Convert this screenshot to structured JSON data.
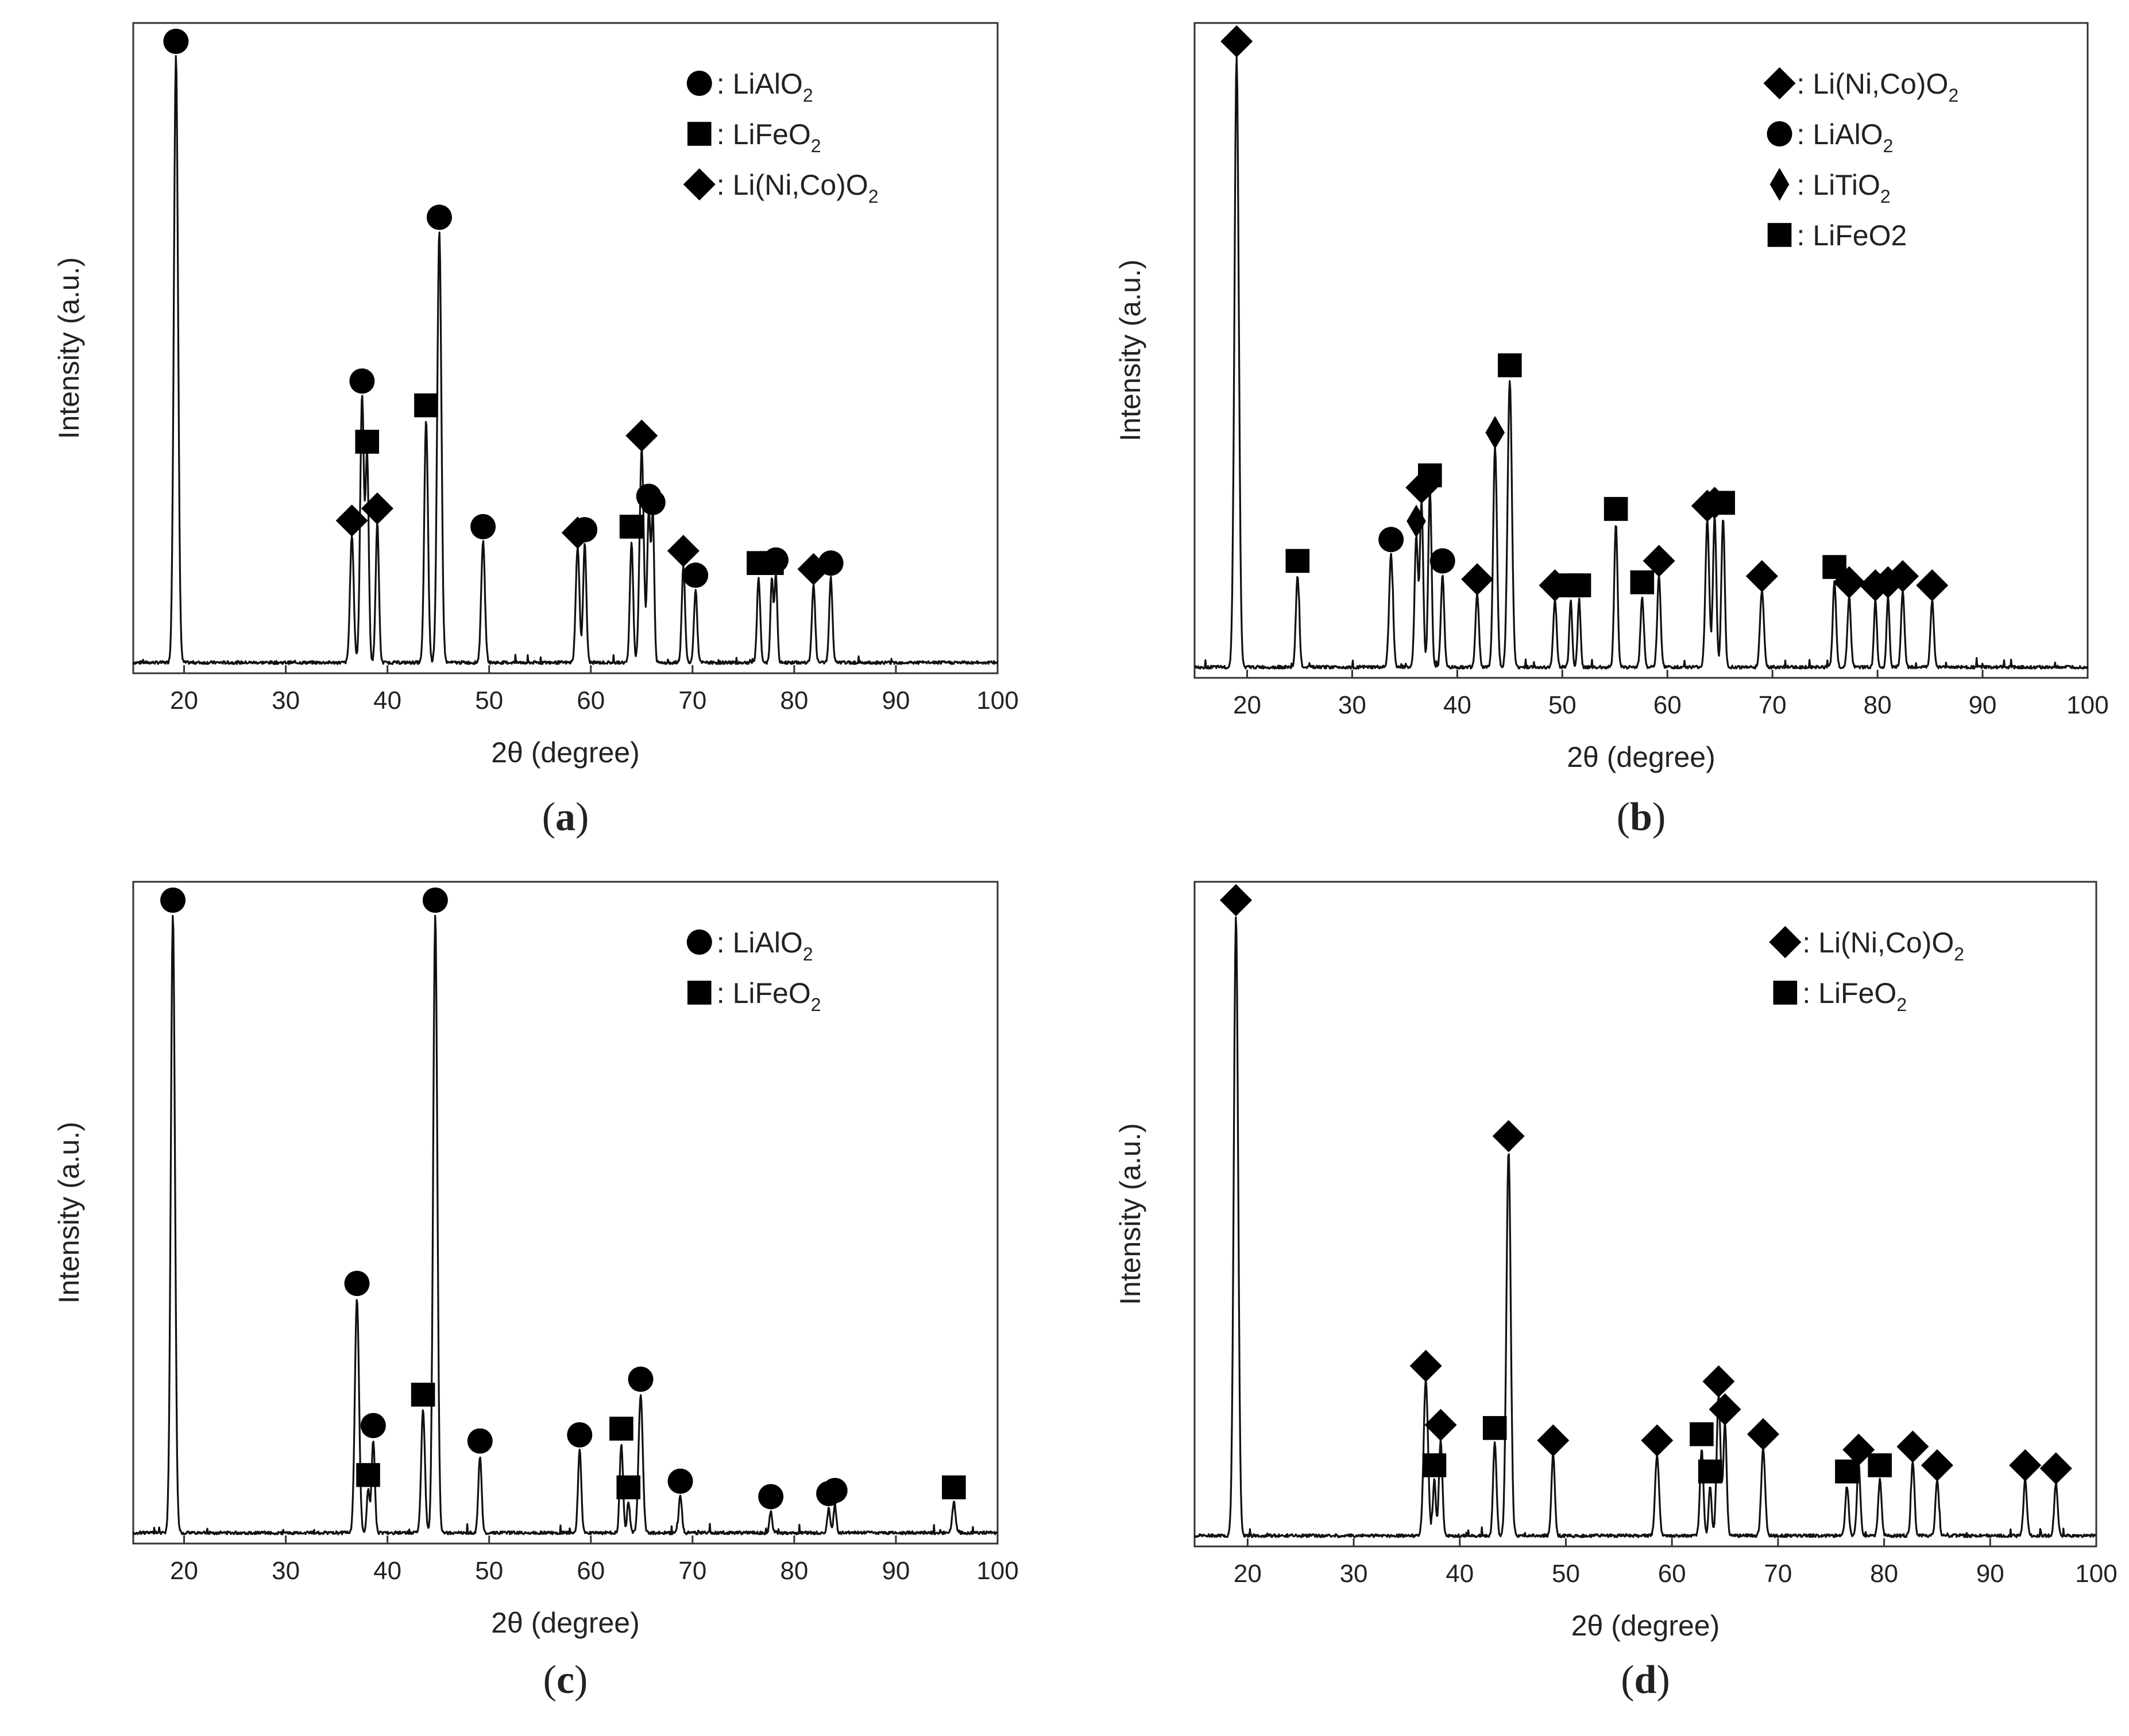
{
  "figure": {
    "background": "#ffffff",
    "ink": "#000000"
  },
  "chart_data": [
    {
      "panel": "a",
      "type": "line",
      "title": "",
      "caption_letter": "a",
      "xlabel": "2θ (degree)",
      "ylabel": "Intensity (a.u.)",
      "xlim": [
        15,
        100
      ],
      "ylim": [
        0,
        100
      ],
      "xticks": [
        20,
        30,
        40,
        50,
        60,
        70,
        80,
        90,
        100
      ],
      "legend_position": "top-right",
      "legend": [
        {
          "marker": "circle",
          "prefix": ": ",
          "label": "LiAlO",
          "sub": "2"
        },
        {
          "marker": "square",
          "prefix": ": ",
          "label": "LiFeO",
          "sub": "2"
        },
        {
          "marker": "diamond",
          "prefix": ": ",
          "label": "Li(Ni,Co)O",
          "sub": "2"
        }
      ],
      "peaks": [
        {
          "x": 19.2,
          "y": 100,
          "marker": "circle",
          "width": 0.45
        },
        {
          "x": 36.5,
          "y": 21,
          "marker": "diamond",
          "width": 0.4
        },
        {
          "x": 37.5,
          "y": 44,
          "marker": "circle",
          "width": 0.4
        },
        {
          "x": 38.0,
          "y": 34,
          "marker": "square",
          "width": 0.35
        },
        {
          "x": 39.0,
          "y": 23,
          "marker": "diamond",
          "width": 0.35
        },
        {
          "x": 43.8,
          "y": 40,
          "marker": "square",
          "width": 0.4
        },
        {
          "x": 45.1,
          "y": 71,
          "marker": "circle",
          "width": 0.45
        },
        {
          "x": 49.4,
          "y": 20,
          "marker": "circle",
          "width": 0.4
        },
        {
          "x": 58.7,
          "y": 19,
          "marker": "diamond",
          "width": 0.4
        },
        {
          "x": 59.4,
          "y": 19.5,
          "marker": "circle",
          "width": 0.35
        },
        {
          "x": 64.0,
          "y": 20,
          "marker": "square",
          "width": 0.35
        },
        {
          "x": 65.0,
          "y": 35,
          "marker": "diamond",
          "width": 0.45
        },
        {
          "x": 65.7,
          "y": 25,
          "marker": "circle",
          "width": 0.35
        },
        {
          "x": 66.1,
          "y": 24,
          "marker": "circle",
          "width": 0.3
        },
        {
          "x": 69.1,
          "y": 16,
          "marker": "diamond",
          "width": 0.35
        },
        {
          "x": 70.3,
          "y": 12,
          "marker": "circle",
          "width": 0.35
        },
        {
          "x": 76.5,
          "y": 14,
          "marker": "square",
          "width": 0.35
        },
        {
          "x": 77.8,
          "y": 14,
          "marker": "square",
          "width": 0.3
        },
        {
          "x": 78.2,
          "y": 14.5,
          "marker": "circle",
          "width": 0.3
        },
        {
          "x": 81.9,
          "y": 13,
          "marker": "diamond",
          "width": 0.35
        },
        {
          "x": 83.6,
          "y": 14,
          "marker": "circle",
          "width": 0.35
        }
      ]
    },
    {
      "panel": "b",
      "type": "line",
      "title": "",
      "caption_letter": "b",
      "xlabel": "2θ (degree)",
      "ylabel": "Intensity (a.u.)",
      "xlim": [
        15,
        100
      ],
      "ylim": [
        0,
        100
      ],
      "xticks": [
        20,
        30,
        40,
        50,
        60,
        70,
        80,
        90,
        100
      ],
      "legend_position": "top-right",
      "legend": [
        {
          "marker": "diamond",
          "prefix": ": ",
          "label": "Li(Ni,Co)O",
          "sub": "2"
        },
        {
          "marker": "circle",
          "prefix": ": ",
          "label": "LiAlO",
          "sub": "2"
        },
        {
          "marker": "thin-diamond",
          "prefix": ": ",
          "label": "LiTiO",
          "sub": "2"
        },
        {
          "marker": "square",
          "prefix": ": ",
          "label": "LiFeO2",
          "sub": ""
        }
      ],
      "peaks": [
        {
          "x": 19.0,
          "y": 100,
          "marker": "diamond",
          "width": 0.45
        },
        {
          "x": 24.8,
          "y": 15,
          "marker": "square",
          "width": 0.35
        },
        {
          "x": 33.7,
          "y": 18.5,
          "marker": "circle",
          "width": 0.4
        },
        {
          "x": 36.1,
          "y": 21.5,
          "marker": "thin-diamond",
          "width": 0.35
        },
        {
          "x": 36.6,
          "y": 27,
          "marker": "diamond",
          "width": 0.35
        },
        {
          "x": 37.4,
          "y": 29,
          "marker": "square",
          "width": 0.35
        },
        {
          "x": 38.6,
          "y": 15,
          "marker": "circle",
          "width": 0.35
        },
        {
          "x": 41.9,
          "y": 12,
          "marker": "diamond",
          "width": 0.35
        },
        {
          "x": 43.6,
          "y": 36,
          "marker": "thin-diamond",
          "width": 0.4
        },
        {
          "x": 45.0,
          "y": 47,
          "marker": "square",
          "width": 0.45
        },
        {
          "x": 49.3,
          "y": 11,
          "marker": "diamond",
          "width": 0.35
        },
        {
          "x": 50.8,
          "y": 11,
          "marker": "square",
          "width": 0.3
        },
        {
          "x": 51.6,
          "y": 11,
          "marker": "square",
          "width": 0.3
        },
        {
          "x": 55.1,
          "y": 23.5,
          "marker": "square",
          "width": 0.35
        },
        {
          "x": 57.6,
          "y": 11.5,
          "marker": "square",
          "width": 0.35
        },
        {
          "x": 59.2,
          "y": 15,
          "marker": "diamond",
          "width": 0.35
        },
        {
          "x": 63.8,
          "y": 24,
          "marker": "diamond",
          "width": 0.4
        },
        {
          "x": 64.5,
          "y": 24.5,
          "marker": "diamond",
          "width": 0.35
        },
        {
          "x": 65.3,
          "y": 24.5,
          "marker": "square",
          "width": 0.35
        },
        {
          "x": 69.0,
          "y": 12.5,
          "marker": "diamond",
          "width": 0.4
        },
        {
          "x": 75.9,
          "y": 14,
          "marker": "square",
          "width": 0.35
        },
        {
          "x": 77.3,
          "y": 11.5,
          "marker": "diamond",
          "width": 0.35
        },
        {
          "x": 79.8,
          "y": 11,
          "marker": "diamond",
          "width": 0.3
        },
        {
          "x": 81.0,
          "y": 11.5,
          "marker": "diamond",
          "width": 0.3
        },
        {
          "x": 82.4,
          "y": 12.5,
          "marker": "diamond",
          "width": 0.35
        },
        {
          "x": 85.2,
          "y": 11,
          "marker": "diamond",
          "width": 0.35
        }
      ]
    },
    {
      "panel": "c",
      "type": "line",
      "title": "",
      "caption_letter": "c",
      "xlabel": "2θ (degree)",
      "ylabel": "Intensity (a.u.)",
      "xlim": [
        15,
        100
      ],
      "ylim": [
        0,
        100
      ],
      "xticks": [
        20,
        30,
        40,
        50,
        60,
        70,
        80,
        90,
        100
      ],
      "legend_position": "top-right",
      "legend": [
        {
          "marker": "circle",
          "prefix": ": ",
          "label": "LiAlO",
          "sub": "2"
        },
        {
          "marker": "square",
          "prefix": ": ",
          "label": "LiFeO",
          "sub": "2"
        }
      ],
      "peaks": [
        {
          "x": 18.9,
          "y": 100,
          "marker": "circle",
          "width": 0.45
        },
        {
          "x": 37.0,
          "y": 38,
          "marker": "circle",
          "width": 0.45
        },
        {
          "x": 38.1,
          "y": 7,
          "marker": "square",
          "width": 0.3
        },
        {
          "x": 38.6,
          "y": 15,
          "marker": "circle",
          "width": 0.35
        },
        {
          "x": 43.5,
          "y": 20,
          "marker": "square",
          "width": 0.4
        },
        {
          "x": 44.7,
          "y": 100,
          "marker": "circle",
          "width": 0.45
        },
        {
          "x": 49.1,
          "y": 12.5,
          "marker": "circle",
          "width": 0.35
        },
        {
          "x": 58.9,
          "y": 13.5,
          "marker": "circle",
          "width": 0.35
        },
        {
          "x": 63.0,
          "y": 14.5,
          "marker": "square",
          "width": 0.35
        },
        {
          "x": 63.7,
          "y": 5,
          "marker": "square",
          "width": 0.3
        },
        {
          "x": 64.9,
          "y": 22.5,
          "marker": "circle",
          "width": 0.45
        },
        {
          "x": 68.8,
          "y": 6,
          "marker": "circle",
          "width": 0.35
        },
        {
          "x": 77.7,
          "y": 3.5,
          "marker": "circle",
          "width": 0.3
        },
        {
          "x": 83.4,
          "y": 4,
          "marker": "circle",
          "width": 0.3
        },
        {
          "x": 84.0,
          "y": 4.5,
          "marker": "circle",
          "width": 0.3
        },
        {
          "x": 95.7,
          "y": 5,
          "marker": "square",
          "width": 0.35
        }
      ]
    },
    {
      "panel": "d",
      "type": "line",
      "title": "",
      "caption_letter": "d",
      "xlabel": "2θ (degree)",
      "ylabel": "Intensity (a.u.)",
      "xlim": [
        15,
        100
      ],
      "ylim": [
        0,
        100
      ],
      "xticks": [
        20,
        30,
        40,
        50,
        60,
        70,
        80,
        90,
        100
      ],
      "legend_position": "top-right",
      "legend": [
        {
          "marker": "diamond",
          "prefix": ": ",
          "label": "Li(Ni,Co)O",
          "sub": "2"
        },
        {
          "marker": "square",
          "prefix": ": ",
          "label": "LiFeO",
          "sub": "2"
        }
      ],
      "peaks": [
        {
          "x": 18.9,
          "y": 100,
          "marker": "diamond",
          "width": 0.45
        },
        {
          "x": 36.8,
          "y": 25,
          "marker": "diamond",
          "width": 0.45
        },
        {
          "x": 37.6,
          "y": 9,
          "marker": "square",
          "width": 0.3
        },
        {
          "x": 38.2,
          "y": 15.5,
          "marker": "diamond",
          "width": 0.35
        },
        {
          "x": 43.3,
          "y": 15,
          "marker": "square",
          "width": 0.35
        },
        {
          "x": 44.6,
          "y": 62,
          "marker": "diamond",
          "width": 0.45
        },
        {
          "x": 48.8,
          "y": 13,
          "marker": "diamond",
          "width": 0.35
        },
        {
          "x": 58.6,
          "y": 13,
          "marker": "diamond",
          "width": 0.4
        },
        {
          "x": 62.8,
          "y": 14,
          "marker": "square",
          "width": 0.35
        },
        {
          "x": 63.6,
          "y": 8,
          "marker": "square",
          "width": 0.3
        },
        {
          "x": 64.4,
          "y": 22.5,
          "marker": "diamond",
          "width": 0.4
        },
        {
          "x": 65.0,
          "y": 18,
          "marker": "diamond",
          "width": 0.35
        },
        {
          "x": 68.6,
          "y": 14,
          "marker": "diamond",
          "width": 0.4
        },
        {
          "x": 76.5,
          "y": 8,
          "marker": "square",
          "width": 0.35
        },
        {
          "x": 77.6,
          "y": 11.5,
          "marker": "diamond",
          "width": 0.35
        },
        {
          "x": 79.6,
          "y": 9,
          "marker": "square",
          "width": 0.35
        },
        {
          "x": 82.7,
          "y": 12,
          "marker": "diamond",
          "width": 0.35
        },
        {
          "x": 85.0,
          "y": 9,
          "marker": "diamond",
          "width": 0.35
        },
        {
          "x": 93.3,
          "y": 9,
          "marker": "diamond",
          "width": 0.35
        },
        {
          "x": 96.2,
          "y": 8.5,
          "marker": "diamond",
          "width": 0.35
        }
      ]
    }
  ]
}
